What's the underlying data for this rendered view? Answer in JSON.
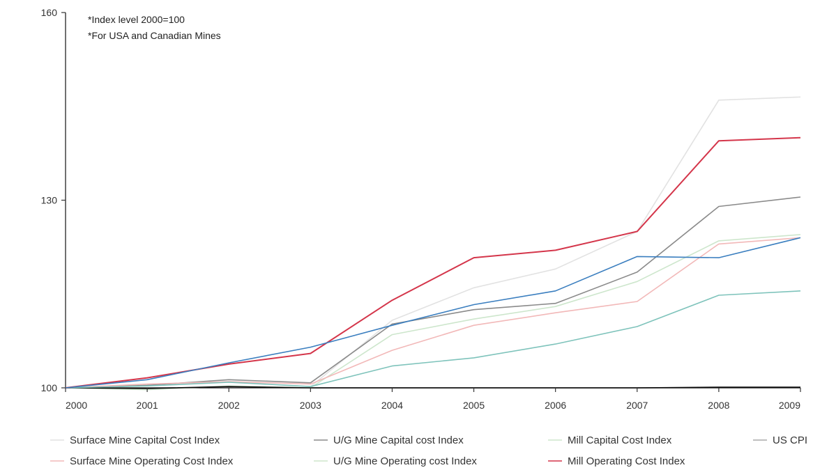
{
  "chart_data": {
    "type": "line",
    "title": "",
    "annotations": [
      "*Index level 2000=100",
      "*For USA and Canadian Mines"
    ],
    "xlabel": "",
    "ylabel": "",
    "x": [
      "2000",
      "2001",
      "2002",
      "2003",
      "2004",
      "2005",
      "2006",
      "2007",
      "2008",
      "2009"
    ],
    "y_ticks": [
      "100",
      "130",
      "160"
    ],
    "ylim": [
      100,
      160
    ],
    "grid": false,
    "legend_position": "bottom",
    "series": [
      {
        "name": "Surface Mine Capital Cost Index",
        "color": "#e2e2e2",
        "values": [
          100,
          100.5,
          101.0,
          100.2,
          110.8,
          116.0,
          119.0,
          125.0,
          146.0,
          146.5
        ]
      },
      {
        "name": "U/G Mine Capital cost Index",
        "color": "#8a8a8a",
        "values": [
          100,
          100.4,
          101.3,
          100.8,
          110.2,
          112.5,
          113.5,
          118.5,
          129.0,
          130.5
        ]
      },
      {
        "name": "Mill Capital Cost Index",
        "color": "#cde6cc",
        "values": [
          100,
          99.7,
          100.3,
          100.0,
          108.5,
          111.0,
          113.0,
          117.0,
          123.5,
          124.5
        ]
      },
      {
        "name": "US CPI",
        "color": "#0a0a0a",
        "values": [
          100,
          99.9,
          100.2,
          100.0,
          100.0,
          100.0,
          100.0,
          100.0,
          100.1,
          100.1
        ]
      },
      {
        "name": "Surface Mine Operating Cost Index",
        "color": "#f2b8b8",
        "values": [
          100,
          100.6,
          101.0,
          100.6,
          106.0,
          110.0,
          112.0,
          113.8,
          123.0,
          124.0
        ]
      },
      {
        "name": "U/G Mine Operating cost Index",
        "color": "#7ec3bb",
        "values": [
          100,
          100.3,
          100.9,
          100.2,
          103.5,
          104.8,
          107.0,
          109.8,
          114.8,
          115.5
        ]
      },
      {
        "name": "Mill Operating Cost Index",
        "color": "#d4354a",
        "values": [
          100,
          101.6,
          103.8,
          105.5,
          114.0,
          120.8,
          122.0,
          125.0,
          139.5,
          140.0
        ]
      },
      {
        "name": "",
        "color": "#3a7ebf",
        "values": [
          100,
          101.3,
          104.0,
          106.5,
          110.0,
          113.3,
          115.5,
          121.0,
          120.8,
          124.0
        ]
      }
    ],
    "legend": [
      {
        "label": "Surface Mine Capital Cost Index",
        "color": "#e2e2e2"
      },
      {
        "label": "U/G Mine Capital cost Index",
        "color": "#8a8a8a"
      },
      {
        "label": "Mill Capital Cost Index",
        "color": "#cde6cc"
      },
      {
        "label": "US CPI",
        "color": "#aaaaaa"
      },
      {
        "label": "Surface Mine Operating Cost Index",
        "color": "#f2b8b8"
      },
      {
        "label": "U/G Mine Operating cost Index",
        "color": "#cde6cc"
      },
      {
        "label": "Mill Operating Cost Index",
        "color": "#d4354a"
      }
    ]
  }
}
